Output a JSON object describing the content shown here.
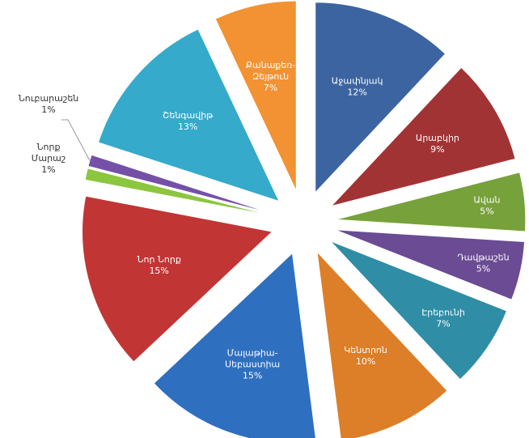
{
  "chart_data": {
    "type": "pie",
    "style": "exploded",
    "slices": [
      {
        "label": "Աջափնյակ",
        "value": 12,
        "value_text": "12%",
        "color": "#3b64a0"
      },
      {
        "label": "Արաբկիր",
        "value": 9,
        "value_text": "9%",
        "color": "#a23335"
      },
      {
        "label": "Ավան",
        "value": 5,
        "value_text": "5%",
        "color": "#77a13a"
      },
      {
        "label": "Դավթաշեն",
        "value": 5,
        "value_text": "5%",
        "color": "#6a4b94"
      },
      {
        "label": "Էրեբունի",
        "value": 7,
        "value_text": "7%",
        "color": "#2f8da5"
      },
      {
        "label": "Կենտրոն",
        "value": 10,
        "value_text": "10%",
        "color": "#dd7e28"
      },
      {
        "label": "Մալաթիա-Սեբաստիա",
        "value": 15,
        "value_text": "15%",
        "color": "#2f6fbf"
      },
      {
        "label": "Նոր Նորք",
        "value": 15,
        "value_text": "15%",
        "color": "#c23535"
      },
      {
        "label": "Նորք Մարաշ",
        "value": 1,
        "value_text": "1%",
        "color": "#8cc63f"
      },
      {
        "label": "Նուբարաշեն",
        "value": 1,
        "value_text": "1%",
        "color": "#7451a7"
      },
      {
        "label": "Շենգավիթ",
        "value": 13,
        "value_text": "13%",
        "color": "#35aacb"
      },
      {
        "label": "Քանաքեռ-Զեյթուն",
        "value": 7,
        "value_text": "7%",
        "color": "#f39232"
      }
    ]
  }
}
